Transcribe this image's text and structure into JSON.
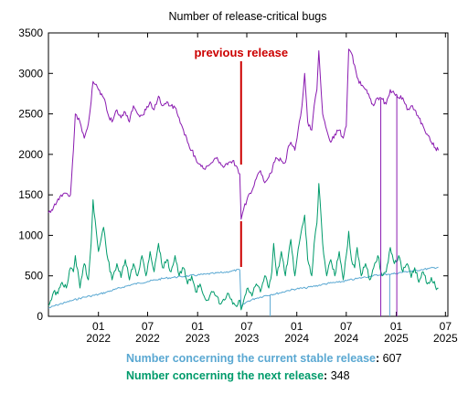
{
  "chart_data": {
    "type": "line",
    "title": "Number of release-critical bugs",
    "xlabel": "",
    "ylabel": "",
    "ylim": [
      0,
      3500
    ],
    "yticks": [
      0,
      500,
      1000,
      1500,
      2000,
      2500,
      3000,
      3500
    ],
    "xlim": [
      "2021-07-01",
      "2025-07-10"
    ],
    "xticks": [
      {
        "date": "2022-01-01",
        "month": "01",
        "year": "2022"
      },
      {
        "date": "2022-07-01",
        "month": "07",
        "year": "2022"
      },
      {
        "date": "2023-01-01",
        "month": "01",
        "year": "2023"
      },
      {
        "date": "2023-07-01",
        "month": "07",
        "year": "2023"
      },
      {
        "date": "2024-01-01",
        "month": "01",
        "year": "2024"
      },
      {
        "date": "2024-07-01",
        "month": "07",
        "year": "2024"
      },
      {
        "date": "2025-01-01",
        "month": "01",
        "year": "2025"
      },
      {
        "date": "2025-07-01",
        "month": "07",
        "year": "2025"
      }
    ],
    "grid": false,
    "annotation": {
      "text": "previous release",
      "date": "2023-06-10",
      "color": "#cc0000"
    },
    "series": [
      {
        "key": "total",
        "color": "#8a1ab0",
        "points": [
          [
            "2021-07-01",
            1280
          ],
          [
            "2021-07-20",
            1350
          ],
          [
            "2021-08-05",
            1450
          ],
          [
            "2021-08-20",
            1480
          ],
          [
            "2021-09-05",
            1520
          ],
          [
            "2021-09-20",
            1500
          ],
          [
            "2021-10-01",
            2050
          ],
          [
            "2021-10-08",
            2500
          ],
          [
            "2021-10-25",
            2400
          ],
          [
            "2021-11-10",
            2200
          ],
          [
            "2021-11-25",
            2380
          ],
          [
            "2021-12-05",
            2650
          ],
          [
            "2021-12-12",
            2900
          ],
          [
            "2022-01-01",
            2800
          ],
          [
            "2022-01-20",
            2700
          ],
          [
            "2022-02-05",
            2500
          ],
          [
            "2022-02-20",
            2400
          ],
          [
            "2022-03-10",
            2550
          ],
          [
            "2022-03-25",
            2450
          ],
          [
            "2022-04-10",
            2520
          ],
          [
            "2022-04-25",
            2400
          ],
          [
            "2022-05-10",
            2600
          ],
          [
            "2022-05-25",
            2500
          ],
          [
            "2022-06-10",
            2480
          ],
          [
            "2022-06-25",
            2550
          ],
          [
            "2022-07-10",
            2650
          ],
          [
            "2022-07-25",
            2550
          ],
          [
            "2022-08-10",
            2720
          ],
          [
            "2022-08-25",
            2600
          ],
          [
            "2022-09-10",
            2650
          ],
          [
            "2022-09-25",
            2600
          ],
          [
            "2022-10-10",
            2580
          ],
          [
            "2022-10-25",
            2450
          ],
          [
            "2022-11-10",
            2300
          ],
          [
            "2022-11-25",
            2150
          ],
          [
            "2022-12-10",
            2050
          ],
          [
            "2022-12-25",
            1950
          ],
          [
            "2023-01-10",
            1880
          ],
          [
            "2023-01-25",
            1820
          ],
          [
            "2023-02-10",
            1860
          ],
          [
            "2023-02-25",
            1900
          ],
          [
            "2023-03-10",
            1950
          ],
          [
            "2023-03-25",
            1900
          ],
          [
            "2023-04-10",
            1850
          ],
          [
            "2023-04-25",
            1900
          ],
          [
            "2023-05-10",
            1920
          ],
          [
            "2023-05-25",
            1850
          ],
          [
            "2023-06-05",
            1760
          ],
          [
            "2023-06-10",
            1200
          ],
          [
            "2023-06-20",
            1330
          ],
          [
            "2023-07-05",
            1480
          ],
          [
            "2023-07-20",
            1550
          ],
          [
            "2023-08-05",
            1700
          ],
          [
            "2023-08-20",
            1800
          ],
          [
            "2023-09-05",
            1650
          ],
          [
            "2023-09-20",
            1720
          ],
          [
            "2023-10-01",
            1780
          ],
          [
            "2023-10-08",
            1900
          ],
          [
            "2023-10-20",
            1950
          ],
          [
            "2023-11-05",
            1920
          ],
          [
            "2023-11-20",
            1900
          ],
          [
            "2023-12-01",
            2100
          ],
          [
            "2023-12-10",
            2150
          ],
          [
            "2023-12-25",
            2050
          ],
          [
            "2024-01-10",
            2400
          ],
          [
            "2024-01-20",
            2600
          ],
          [
            "2024-01-30",
            3000
          ],
          [
            "2024-02-10",
            2400
          ],
          [
            "2024-02-25",
            2300
          ],
          [
            "2024-03-05",
            2600
          ],
          [
            "2024-03-15",
            2800
          ],
          [
            "2024-03-22",
            3280
          ],
          [
            "2024-04-05",
            2500
          ],
          [
            "2024-04-20",
            2300
          ],
          [
            "2024-05-05",
            2150
          ],
          [
            "2024-05-20",
            2250
          ],
          [
            "2024-06-05",
            2300
          ],
          [
            "2024-06-20",
            2200
          ],
          [
            "2024-07-01",
            2350
          ],
          [
            "2024-07-10",
            3300
          ],
          [
            "2024-07-20",
            3250
          ],
          [
            "2024-08-01",
            3100
          ],
          [
            "2024-08-10",
            2950
          ],
          [
            "2024-08-25",
            2850
          ],
          [
            "2024-09-10",
            2800
          ],
          [
            "2024-09-25",
            2700
          ],
          [
            "2024-10-10",
            2600
          ],
          [
            "2024-10-25",
            2700
          ],
          [
            "2024-11-10",
            2680
          ],
          [
            "2024-11-25",
            2620
          ],
          [
            "2024-12-10",
            2800
          ],
          [
            "2024-12-25",
            2750
          ],
          [
            "2025-01-10",
            2700
          ],
          [
            "2025-01-25",
            2700
          ],
          [
            "2025-02-10",
            2550
          ],
          [
            "2025-02-25",
            2600
          ],
          [
            "2025-03-10",
            2550
          ],
          [
            "2025-03-25",
            2450
          ],
          [
            "2025-04-10",
            2350
          ],
          [
            "2025-04-25",
            2250
          ],
          [
            "2025-05-10",
            2150
          ],
          [
            "2025-05-25",
            2080
          ],
          [
            "2025-06-05",
            2050
          ]
        ]
      },
      {
        "key": "next",
        "name": "Number concerning the next release",
        "color": "#009b6b",
        "points": [
          [
            "2021-07-01",
            130
          ],
          [
            "2021-07-20",
            300
          ],
          [
            "2021-08-05",
            280
          ],
          [
            "2021-08-20",
            420
          ],
          [
            "2021-09-05",
            350
          ],
          [
            "2021-09-20",
            600
          ],
          [
            "2021-10-01",
            550
          ],
          [
            "2021-10-08",
            750
          ],
          [
            "2021-10-25",
            350
          ],
          [
            "2021-11-10",
            650
          ],
          [
            "2021-11-25",
            450
          ],
          [
            "2021-12-05",
            900
          ],
          [
            "2021-12-12",
            1440
          ],
          [
            "2022-01-01",
            800
          ],
          [
            "2022-01-20",
            1100
          ],
          [
            "2022-02-05",
            700
          ],
          [
            "2022-02-20",
            450
          ],
          [
            "2022-03-10",
            650
          ],
          [
            "2022-03-25",
            480
          ],
          [
            "2022-04-10",
            700
          ],
          [
            "2022-04-25",
            450
          ],
          [
            "2022-05-10",
            650
          ],
          [
            "2022-05-25",
            500
          ],
          [
            "2022-06-10",
            750
          ],
          [
            "2022-06-25",
            500
          ],
          [
            "2022-07-10",
            800
          ],
          [
            "2022-07-25",
            550
          ],
          [
            "2022-08-10",
            900
          ],
          [
            "2022-08-25",
            600
          ],
          [
            "2022-09-10",
            700
          ],
          [
            "2022-09-25",
            550
          ],
          [
            "2022-10-10",
            750
          ],
          [
            "2022-10-25",
            500
          ],
          [
            "2022-11-10",
            600
          ],
          [
            "2022-11-25",
            400
          ],
          [
            "2022-12-10",
            500
          ],
          [
            "2022-12-25",
            300
          ],
          [
            "2023-01-10",
            400
          ],
          [
            "2023-01-25",
            250
          ],
          [
            "2023-02-10",
            200
          ],
          [
            "2023-02-25",
            300
          ],
          [
            "2023-03-10",
            250
          ],
          [
            "2023-03-25",
            150
          ],
          [
            "2023-04-10",
            200
          ],
          [
            "2023-04-25",
            280
          ],
          [
            "2023-05-10",
            150
          ],
          [
            "2023-05-25",
            120
          ],
          [
            "2023-06-05",
            200
          ],
          [
            "2023-06-10",
            80
          ],
          [
            "2023-06-20",
            200
          ],
          [
            "2023-07-05",
            350
          ],
          [
            "2023-07-20",
            250
          ],
          [
            "2023-08-05",
            400
          ],
          [
            "2023-08-20",
            300
          ],
          [
            "2023-09-05",
            500
          ],
          [
            "2023-09-20",
            350
          ],
          [
            "2023-10-01",
            550
          ],
          [
            "2023-10-08",
            900
          ],
          [
            "2023-10-20",
            500
          ],
          [
            "2023-11-05",
            800
          ],
          [
            "2023-11-20",
            500
          ],
          [
            "2023-12-01",
            750
          ],
          [
            "2023-12-10",
            950
          ],
          [
            "2023-12-25",
            500
          ],
          [
            "2024-01-10",
            900
          ],
          [
            "2024-01-20",
            1100
          ],
          [
            "2024-01-30",
            1250
          ],
          [
            "2024-02-10",
            700
          ],
          [
            "2024-02-25",
            500
          ],
          [
            "2024-03-05",
            900
          ],
          [
            "2024-03-15",
            1150
          ],
          [
            "2024-03-22",
            1640
          ],
          [
            "2024-04-05",
            900
          ],
          [
            "2024-04-20",
            500
          ],
          [
            "2024-05-05",
            700
          ],
          [
            "2024-05-20",
            500
          ],
          [
            "2024-06-05",
            800
          ],
          [
            "2024-06-20",
            450
          ],
          [
            "2024-07-01",
            750
          ],
          [
            "2024-07-10",
            1050
          ],
          [
            "2024-07-20",
            700
          ],
          [
            "2024-08-01",
            600
          ],
          [
            "2024-08-10",
            850
          ],
          [
            "2024-08-25",
            500
          ],
          [
            "2024-09-10",
            650
          ],
          [
            "2024-09-25",
            450
          ],
          [
            "2024-10-10",
            600
          ],
          [
            "2024-10-25",
            750
          ],
          [
            "2024-11-10",
            500
          ],
          [
            "2024-11-25",
            550
          ],
          [
            "2024-12-10",
            850
          ],
          [
            "2024-12-25",
            650
          ],
          [
            "2025-01-10",
            750
          ],
          [
            "2025-01-25",
            550
          ],
          [
            "2025-02-10",
            650
          ],
          [
            "2025-02-25",
            480
          ],
          [
            "2025-03-10",
            600
          ],
          [
            "2025-03-25",
            420
          ],
          [
            "2025-04-10",
            550
          ],
          [
            "2025-04-25",
            400
          ],
          [
            "2025-05-10",
            480
          ],
          [
            "2025-05-25",
            370
          ],
          [
            "2025-06-05",
            348
          ]
        ]
      },
      {
        "key": "current",
        "name": "Number concerning the current stable release",
        "color": "#5aa8d2",
        "points": [
          [
            "2021-07-01",
            100
          ],
          [
            "2021-08-01",
            140
          ],
          [
            "2021-09-01",
            170
          ],
          [
            "2021-10-01",
            200
          ],
          [
            "2021-11-01",
            230
          ],
          [
            "2021-12-01",
            250
          ],
          [
            "2022-01-01",
            270
          ],
          [
            "2022-02-01",
            300
          ],
          [
            "2022-03-01",
            330
          ],
          [
            "2022-04-01",
            360
          ],
          [
            "2022-05-01",
            390
          ],
          [
            "2022-06-01",
            410
          ],
          [
            "2022-07-01",
            430
          ],
          [
            "2022-08-01",
            450
          ],
          [
            "2022-09-01",
            470
          ],
          [
            "2022-10-01",
            480
          ],
          [
            "2022-11-01",
            490
          ],
          [
            "2022-12-01",
            500
          ],
          [
            "2023-01-01",
            510
          ],
          [
            "2023-02-01",
            520
          ],
          [
            "2023-03-01",
            530
          ],
          [
            "2023-04-01",
            540
          ],
          [
            "2023-05-01",
            555
          ],
          [
            "2023-06-05",
            575
          ],
          [
            "2023-06-10",
            120
          ],
          [
            "2023-07-01",
            180
          ],
          [
            "2023-08-01",
            220
          ],
          [
            "2023-09-01",
            250
          ],
          [
            "2023-10-01",
            270
          ],
          [
            "2023-11-01",
            290
          ],
          [
            "2023-12-01",
            320
          ],
          [
            "2024-01-01",
            340
          ],
          [
            "2024-02-01",
            350
          ],
          [
            "2024-03-01",
            370
          ],
          [
            "2024-04-01",
            390
          ],
          [
            "2024-05-01",
            410
          ],
          [
            "2024-06-01",
            420
          ],
          [
            "2024-07-01",
            440
          ],
          [
            "2024-08-01",
            460
          ],
          [
            "2024-09-01",
            480
          ],
          [
            "2024-10-01",
            500
          ],
          [
            "2024-11-01",
            510
          ],
          [
            "2024-12-01",
            520
          ],
          [
            "2025-01-01",
            530
          ],
          [
            "2025-02-01",
            550
          ],
          [
            "2025-03-01",
            560
          ],
          [
            "2025-04-01",
            575
          ],
          [
            "2025-05-01",
            590
          ],
          [
            "2025-06-05",
            607
          ]
        ]
      }
    ],
    "spikes": [
      {
        "series": "total",
        "date": "2024-11-05",
        "value": 0
      },
      {
        "series": "total",
        "date": "2025-01-03",
        "value": 0
      },
      {
        "series": "current",
        "date": "2023-09-25",
        "value": 0
      },
      {
        "series": "current",
        "date": "2024-12-08",
        "value": 0
      }
    ]
  },
  "legend": {
    "current_label": "Number concerning the current stable release",
    "current_value": "607",
    "next_label": "Number concerning the next release",
    "next_value": "348",
    "colon": ":"
  }
}
